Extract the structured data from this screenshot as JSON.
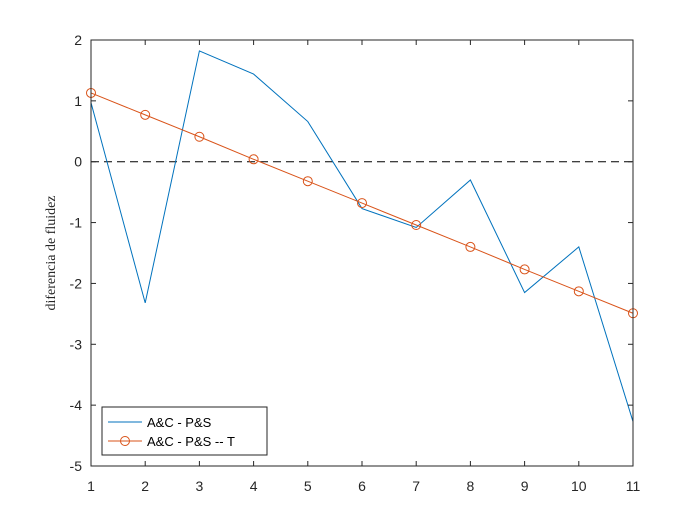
{
  "chart_data": {
    "type": "line",
    "xlabel": "",
    "ylabel": "diferencia de fluidez",
    "xlim": [
      1,
      11
    ],
    "ylim": [
      -5,
      2
    ],
    "xticks": [
      1,
      2,
      3,
      4,
      5,
      6,
      7,
      8,
      9,
      10,
      11
    ],
    "yticks": [
      2,
      1,
      0,
      -1,
      -2,
      -3,
      -4,
      -5
    ],
    "grid": false,
    "legend_position": "bottom-left",
    "reference_line": {
      "y": 0,
      "style": "dashed",
      "color": "#000000"
    },
    "x": [
      1,
      2,
      3,
      4,
      5,
      6,
      7,
      8,
      9,
      10,
      11
    ],
    "series": [
      {
        "name": "A&C - P&S",
        "color": "#0072BD",
        "marker": "none",
        "values": [
          0.97,
          -2.32,
          1.82,
          1.44,
          0.66,
          -0.77,
          -1.08,
          -0.3,
          -2.15,
          -1.4,
          -4.27
        ]
      },
      {
        "name": "A&C - P&S -- T",
        "color": "#D95319",
        "marker": "circle",
        "values": [
          1.13,
          0.77,
          0.41,
          0.04,
          -0.32,
          -0.68,
          -1.04,
          -1.4,
          -1.77,
          -2.13,
          -2.49
        ]
      }
    ]
  }
}
